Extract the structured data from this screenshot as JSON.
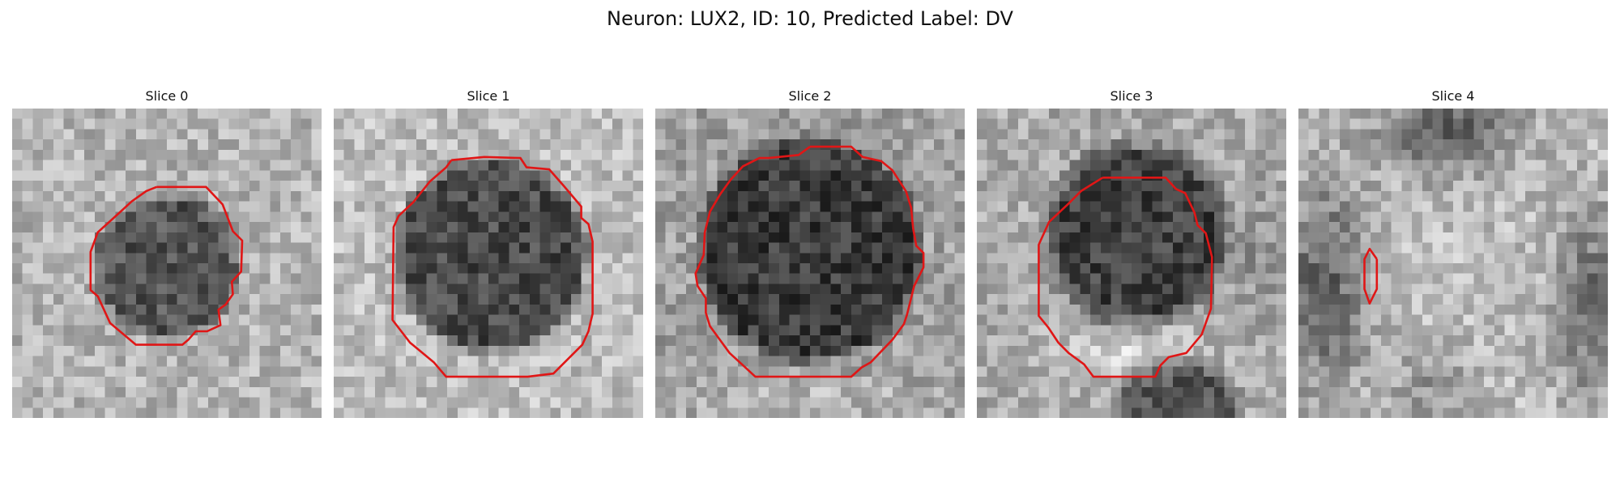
{
  "figure": {
    "title": "Neuron: LUX2, ID: 10, Predicted Label: DV"
  },
  "overlay": {
    "contour_color": "#e01616"
  },
  "slices": [
    {
      "title": "Slice 0",
      "scene": "small dark round cell body centered in grainy light background",
      "cell_shape": "octagon"
    },
    {
      "title": "Slice 1",
      "scene": "larger dark cell body centered, lighter background",
      "cell_shape": "octagon"
    },
    {
      "title": "Slice 2",
      "scene": "largest dark cell body filling most of the frame",
      "cell_shape": "octagon"
    },
    {
      "title": "Slice 3",
      "scene": "dark cell body in upper center with brighter rim below and a dark blob at bottom",
      "cell_shape": "octagon"
    },
    {
      "title": "Slice 4",
      "scene": "dark regions at top, left and right edges with a tiny elongated contour on the left",
      "cell_shape": "small-ellipse"
    }
  ]
}
